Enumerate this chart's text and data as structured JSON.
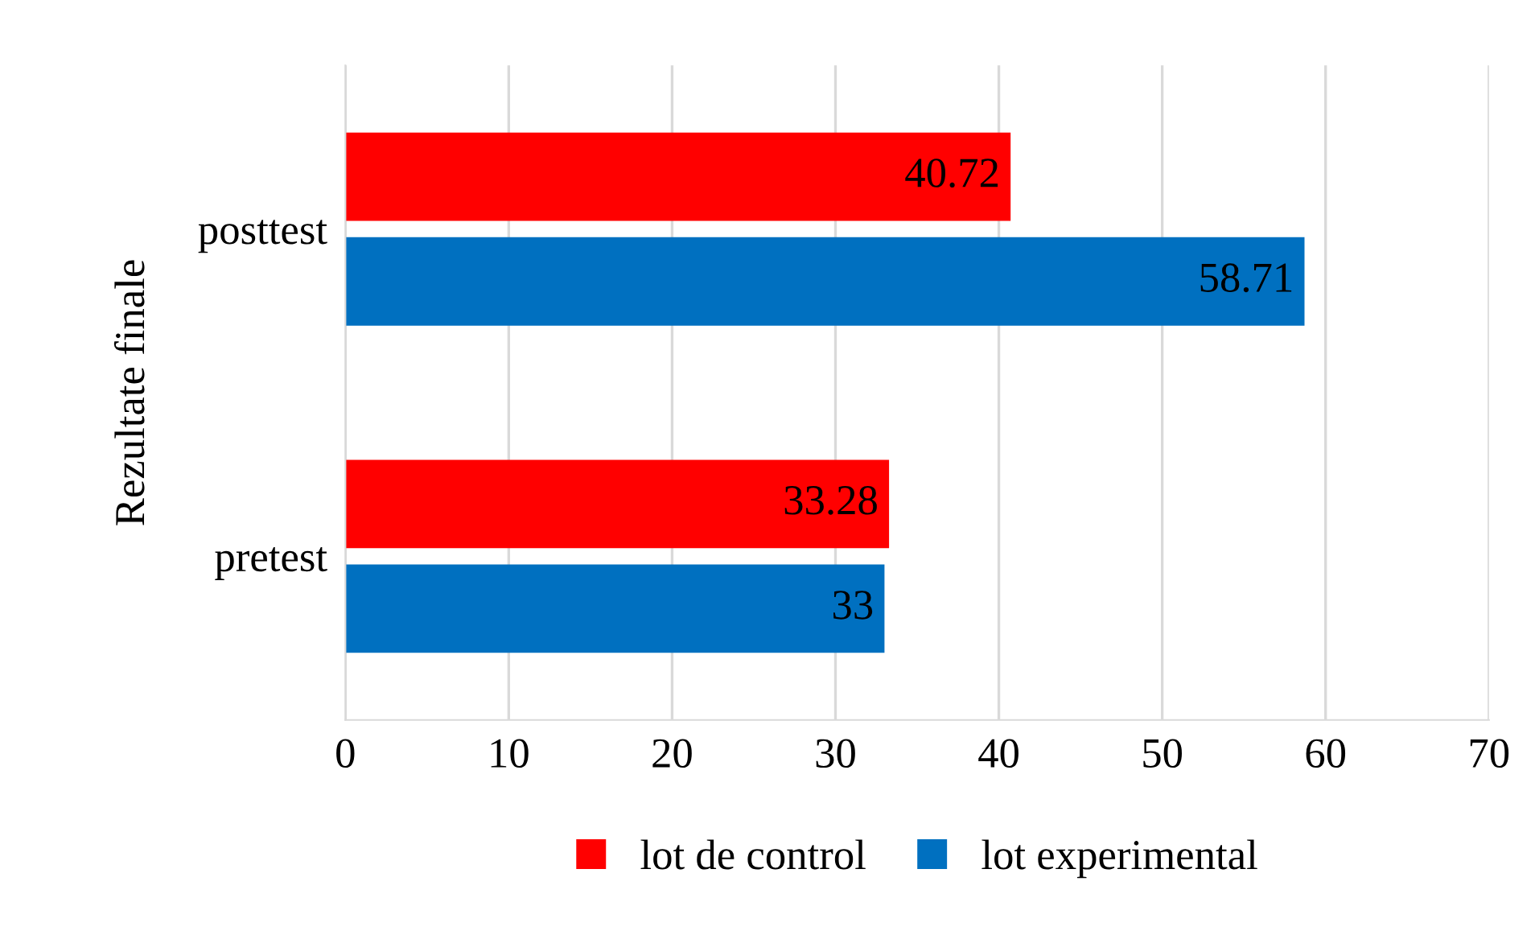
{
  "chart_data": {
    "type": "bar",
    "orientation": "horizontal",
    "ylabel": "Rezultate finale",
    "categories": [
      "posttest",
      "pretest"
    ],
    "series": [
      {
        "name": "lot de control",
        "color": "#ff0000",
        "values": [
          40.72,
          33.28
        ]
      },
      {
        "name": "lot experimental",
        "color": "#0070c0",
        "values": [
          58.71,
          33
        ]
      }
    ],
    "xlim": [
      0,
      70
    ],
    "xticks": [
      0,
      10,
      20,
      30,
      40,
      50,
      60,
      70
    ],
    "grid": "x",
    "legend": "bottom",
    "data_labels": true
  }
}
